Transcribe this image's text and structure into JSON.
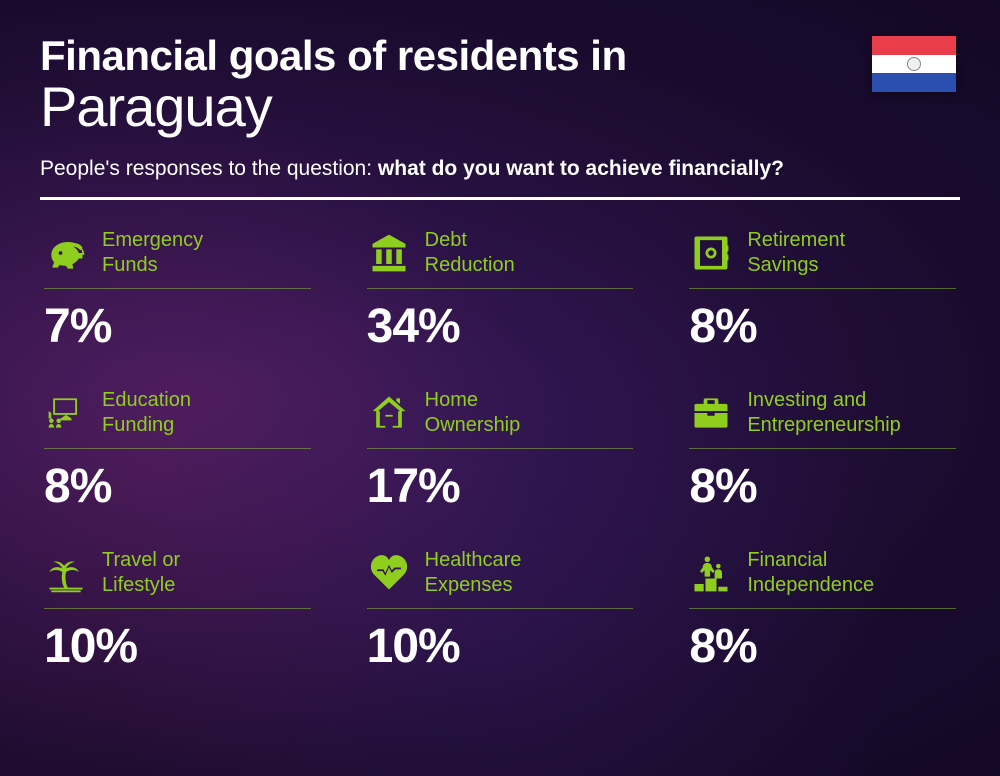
{
  "colors": {
    "accent": "#8fce1f",
    "text": "#ffffff",
    "flag_top": "#e83e4b",
    "flag_mid": "#ffffff",
    "flag_bot": "#2a4fb0"
  },
  "typography": {
    "title1_size": "42px",
    "title2_size": "56px",
    "subtitle_size": "21px",
    "label_size": "20px",
    "value_size": "48px"
  },
  "header": {
    "title_line1": "Financial goals of residents in",
    "title_line2": "Paraguay",
    "subtitle_prefix": "People's responses to the question: ",
    "subtitle_bold": "what do you want to achieve financially?"
  },
  "items": [
    {
      "icon": "piggy",
      "label": "Emergency Funds",
      "value": "7%"
    },
    {
      "icon": "bank",
      "label": "Debt Reduction",
      "value": "34%"
    },
    {
      "icon": "safe",
      "label": "Retirement Savings",
      "value": "8%"
    },
    {
      "icon": "education",
      "label": "Education Funding",
      "value": "8%"
    },
    {
      "icon": "house",
      "label": "Home Ownership",
      "value": "17%"
    },
    {
      "icon": "briefcase",
      "label": "Investing and Entrepreneurship",
      "value": "8%"
    },
    {
      "icon": "palm",
      "label": "Travel or Lifestyle",
      "value": "10%"
    },
    {
      "icon": "heart",
      "label": "Healthcare Expenses",
      "value": "10%"
    },
    {
      "icon": "podium",
      "label": "Financial Independence",
      "value": "8%"
    }
  ]
}
